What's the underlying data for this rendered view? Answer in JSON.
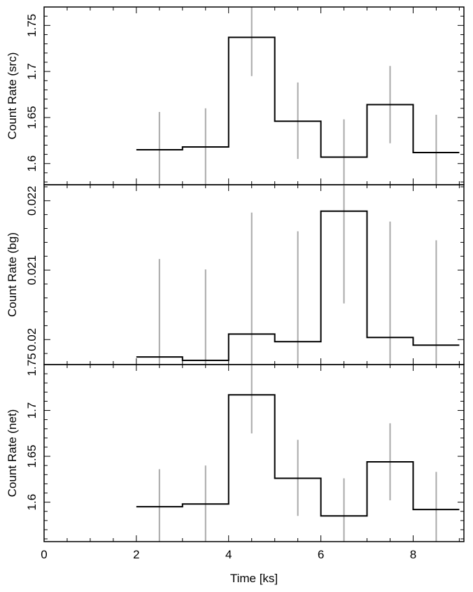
{
  "chart_data": [
    {
      "type": "step-with-errorbars",
      "ylabel": "Count Rate (src)",
      "xlim": [
        0,
        9.1
      ],
      "ylim": [
        1.577,
        1.77
      ],
      "yticks_major": [
        1.6,
        1.65,
        1.7,
        1.75
      ],
      "ytick_labels": [
        "1.6",
        "1.65",
        "1.7",
        "1.75"
      ],
      "bin_edges": [
        2,
        3,
        4,
        5,
        6,
        7,
        8,
        9
      ],
      "values": [
        1.615,
        1.618,
        1.737,
        1.646,
        1.607,
        1.664,
        1.612
      ],
      "error_x": [
        2.5,
        3.5,
        4.5,
        5.5,
        6.5,
        7.5,
        8.5
      ],
      "error_low": [
        1.575,
        1.577,
        1.695,
        1.605,
        1.566,
        1.622,
        1.571
      ],
      "error_high": [
        1.656,
        1.66,
        1.78,
        1.688,
        1.648,
        1.706,
        1.653
      ],
      "step_color": "#000000",
      "errorbar_color": "#a9a9a9"
    },
    {
      "type": "step-with-errorbars",
      "ylabel": "Count Rate (bg)",
      "xlim": [
        0,
        9.1
      ],
      "ylim": [
        0.01964,
        0.02223
      ],
      "yticks_major": [
        0.02,
        0.021,
        0.022
      ],
      "ytick_labels": [
        "0.02",
        "0.021",
        "0.022"
      ],
      "bin_edges": [
        2,
        3,
        4,
        5,
        6,
        7,
        8,
        9
      ],
      "values": [
        0.01975,
        0.0197,
        0.02008,
        0.01997,
        0.02185,
        0.02003,
        0.01992
      ],
      "error_x": [
        2.5,
        3.5,
        4.5,
        5.5,
        6.5,
        7.5,
        8.5
      ],
      "error_low": [
        0.0193,
        0.0193,
        0.0194,
        0.0194,
        0.02052,
        0.0194,
        0.0194
      ],
      "error_high": [
        0.02116,
        0.02101,
        0.02183,
        0.02156,
        0.0225,
        0.0217,
        0.02143
      ],
      "step_color": "#000000",
      "errorbar_color": "#a9a9a9"
    },
    {
      "type": "step-with-errorbars",
      "ylabel": "Count Rate (net)",
      "xlabel": "Time [ks]",
      "xlim": [
        0,
        9.1
      ],
      "ylim": [
        1.557,
        1.75
      ],
      "xticks_major": [
        0,
        2,
        4,
        6,
        8
      ],
      "xtick_labels": [
        "0",
        "2",
        "4",
        "6",
        "8"
      ],
      "yticks_major": [
        1.6,
        1.65,
        1.7,
        1.75
      ],
      "ytick_labels": [
        "1.6",
        "1.65",
        "1.7",
        "1.75"
      ],
      "bin_edges": [
        2,
        3,
        4,
        5,
        6,
        7,
        8,
        9
      ],
      "values": [
        1.595,
        1.598,
        1.717,
        1.626,
        1.585,
        1.644,
        1.592
      ],
      "error_x": [
        2.5,
        3.5,
        4.5,
        5.5,
        6.5,
        7.5,
        8.5
      ],
      "error_low": [
        1.555,
        1.557,
        1.675,
        1.585,
        1.545,
        1.602,
        1.551
      ],
      "error_high": [
        1.636,
        1.64,
        1.76,
        1.668,
        1.626,
        1.686,
        1.633
      ],
      "step_color": "#000000",
      "errorbar_color": "#a9a9a9"
    }
  ]
}
